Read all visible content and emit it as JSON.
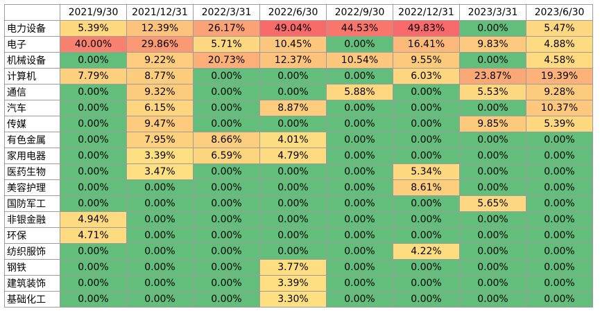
{
  "chart_data": {
    "type": "heatmap",
    "value_suffix": "%",
    "columns": [
      "2021/9/30",
      "2021/12/31",
      "2022/3/31",
      "2022/6/30",
      "2022/9/30",
      "2022/12/31",
      "2023/3/31",
      "2023/6/30"
    ],
    "rows": [
      {
        "label": "电力设备",
        "values": [
          5.39,
          12.39,
          26.17,
          49.04,
          44.53,
          49.83,
          0.0,
          5.47
        ]
      },
      {
        "label": "电子",
        "values": [
          40.0,
          29.86,
          5.71,
          10.45,
          0.0,
          16.41,
          9.83,
          4.88
        ]
      },
      {
        "label": "机械设备",
        "values": [
          0.0,
          9.22,
          20.73,
          12.37,
          10.54,
          9.55,
          0.0,
          4.58
        ]
      },
      {
        "label": "计算机",
        "values": [
          7.79,
          8.77,
          0.0,
          0.0,
          0.0,
          6.03,
          23.87,
          19.39
        ]
      },
      {
        "label": "通信",
        "values": [
          0.0,
          9.32,
          0.0,
          0.0,
          5.88,
          0.0,
          5.53,
          9.28
        ]
      },
      {
        "label": "汽车",
        "values": [
          0.0,
          6.15,
          0.0,
          8.87,
          0.0,
          0.0,
          0.0,
          10.37
        ]
      },
      {
        "label": "传媒",
        "values": [
          0.0,
          9.47,
          0.0,
          0.0,
          0.0,
          0.0,
          9.85,
          5.39
        ]
      },
      {
        "label": "有色金属",
        "values": [
          0.0,
          7.95,
          8.66,
          4.01,
          0.0,
          0.0,
          0.0,
          0.0
        ]
      },
      {
        "label": "家用电器",
        "values": [
          0.0,
          3.39,
          6.59,
          4.79,
          0.0,
          0.0,
          0.0,
          0.0
        ]
      },
      {
        "label": "医药生物",
        "values": [
          0.0,
          3.47,
          0.0,
          0.0,
          0.0,
          5.34,
          0.0,
          0.0
        ]
      },
      {
        "label": "美容护理",
        "values": [
          0.0,
          0.0,
          0.0,
          0.0,
          0.0,
          8.61,
          0.0,
          0.0
        ]
      },
      {
        "label": "国防军工",
        "values": [
          0.0,
          0.0,
          0.0,
          0.0,
          0.0,
          0.0,
          5.65,
          0.0
        ]
      },
      {
        "label": "非银金融",
        "values": [
          4.94,
          0.0,
          0.0,
          0.0,
          0.0,
          0.0,
          0.0,
          0.0
        ]
      },
      {
        "label": "环保",
        "values": [
          4.71,
          0.0,
          0.0,
          0.0,
          0.0,
          0.0,
          0.0,
          0.0
        ]
      },
      {
        "label": "纺织服饰",
        "values": [
          0.0,
          0.0,
          0.0,
          0.0,
          0.0,
          4.22,
          0.0,
          0.0
        ]
      },
      {
        "label": "钢铁",
        "values": [
          0.0,
          0.0,
          0.0,
          3.77,
          0.0,
          0.0,
          0.0,
          0.0
        ]
      },
      {
        "label": "建筑装饰",
        "values": [
          0.0,
          0.0,
          0.0,
          3.39,
          0.0,
          0.0,
          0.0,
          0.0
        ]
      },
      {
        "label": "基础化工",
        "values": [
          0.0,
          0.0,
          0.0,
          3.3,
          0.0,
          0.0,
          0.0,
          0.0
        ]
      }
    ],
    "colors": {
      "zero": "#63be7b",
      "low": "#ffeb84",
      "mid": "#fdc97d",
      "high": "#f8696b"
    }
  }
}
